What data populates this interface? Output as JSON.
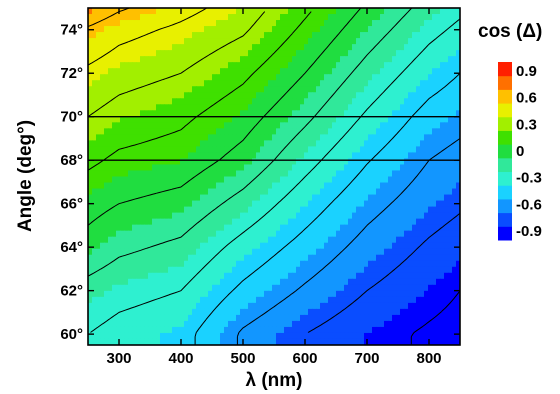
{
  "chart_data": {
    "type": "heatmap",
    "title": "",
    "xlabel": "λ (nm)",
    "ylabel": "Angle (deg°)",
    "xlim": [
      250,
      850
    ],
    "ylim": [
      59.5,
      75
    ],
    "x_ticks": [
      300,
      400,
      500,
      600,
      700,
      800
    ],
    "x_tick_labels": [
      "300",
      "400",
      "500",
      "600",
      "700",
      "800"
    ],
    "y_ticks": [
      60,
      62,
      64,
      66,
      68,
      70,
      72,
      74
    ],
    "y_tick_labels": [
      "60°",
      "62°",
      "64°",
      "66°",
      "68°",
      "70°",
      "72°",
      "74°"
    ],
    "horizontal_lines": [
      68,
      70
    ],
    "colorbar": {
      "title": "cos (Δ)",
      "tick_values": [
        0.9,
        0.6,
        0.3,
        0,
        -0.3,
        -0.6,
        -0.9
      ],
      "tick_labels": [
        "0.9",
        "0.6",
        "0.3",
        "0",
        "-0.3",
        "-0.6",
        "-0.9"
      ],
      "range": [
        -1,
        1
      ],
      "colors": [
        "#0000ff",
        "#0a4dff",
        "#1296ff",
        "#1ad2ff",
        "#2ef0d0",
        "#30e89a",
        "#20dd40",
        "#3fe000",
        "#a2ef00",
        "#e8f000",
        "#ffc000",
        "#ff7000",
        "#ff2000"
      ]
    },
    "contour_levels": [
      -0.9,
      -0.75,
      -0.6,
      -0.45,
      -0.3,
      -0.15,
      0,
      0.15,
      0.3,
      0.45,
      0.6,
      0.75,
      0.9
    ],
    "cos_delta_samples": {
      "angles": [
        60,
        62,
        64,
        66,
        68,
        70,
        72,
        74,
        75
      ],
      "wavelengths": [
        250,
        300,
        400,
        500,
        600,
        700,
        800,
        850
      ],
      "values": [
        [
          -0.3,
          -0.35,
          -0.4,
          -0.62,
          -0.75,
          -0.85,
          -0.92,
          -0.95
        ],
        [
          -0.2,
          -0.25,
          -0.3,
          -0.48,
          -0.62,
          -0.75,
          -0.85,
          -0.9
        ],
        [
          -0.05,
          -0.12,
          -0.18,
          -0.35,
          -0.5,
          -0.65,
          -0.77,
          -0.82
        ],
        [
          0.05,
          0.0,
          -0.05,
          -0.2,
          -0.38,
          -0.55,
          -0.68,
          -0.73
        ],
        [
          0.18,
          0.12,
          0.08,
          -0.05,
          -0.25,
          -0.44,
          -0.6,
          -0.65
        ],
        [
          0.3,
          0.24,
          0.18,
          0.06,
          -0.12,
          -0.32,
          -0.5,
          -0.55
        ],
        [
          0.42,
          0.36,
          0.3,
          0.18,
          0.0,
          -0.2,
          -0.38,
          -0.45
        ],
        [
          0.58,
          0.5,
          0.42,
          0.32,
          0.12,
          -0.08,
          -0.26,
          -0.33
        ],
        [
          0.72,
          0.62,
          0.5,
          0.38,
          0.18,
          -0.02,
          -0.2,
          -0.27
        ]
      ]
    }
  }
}
